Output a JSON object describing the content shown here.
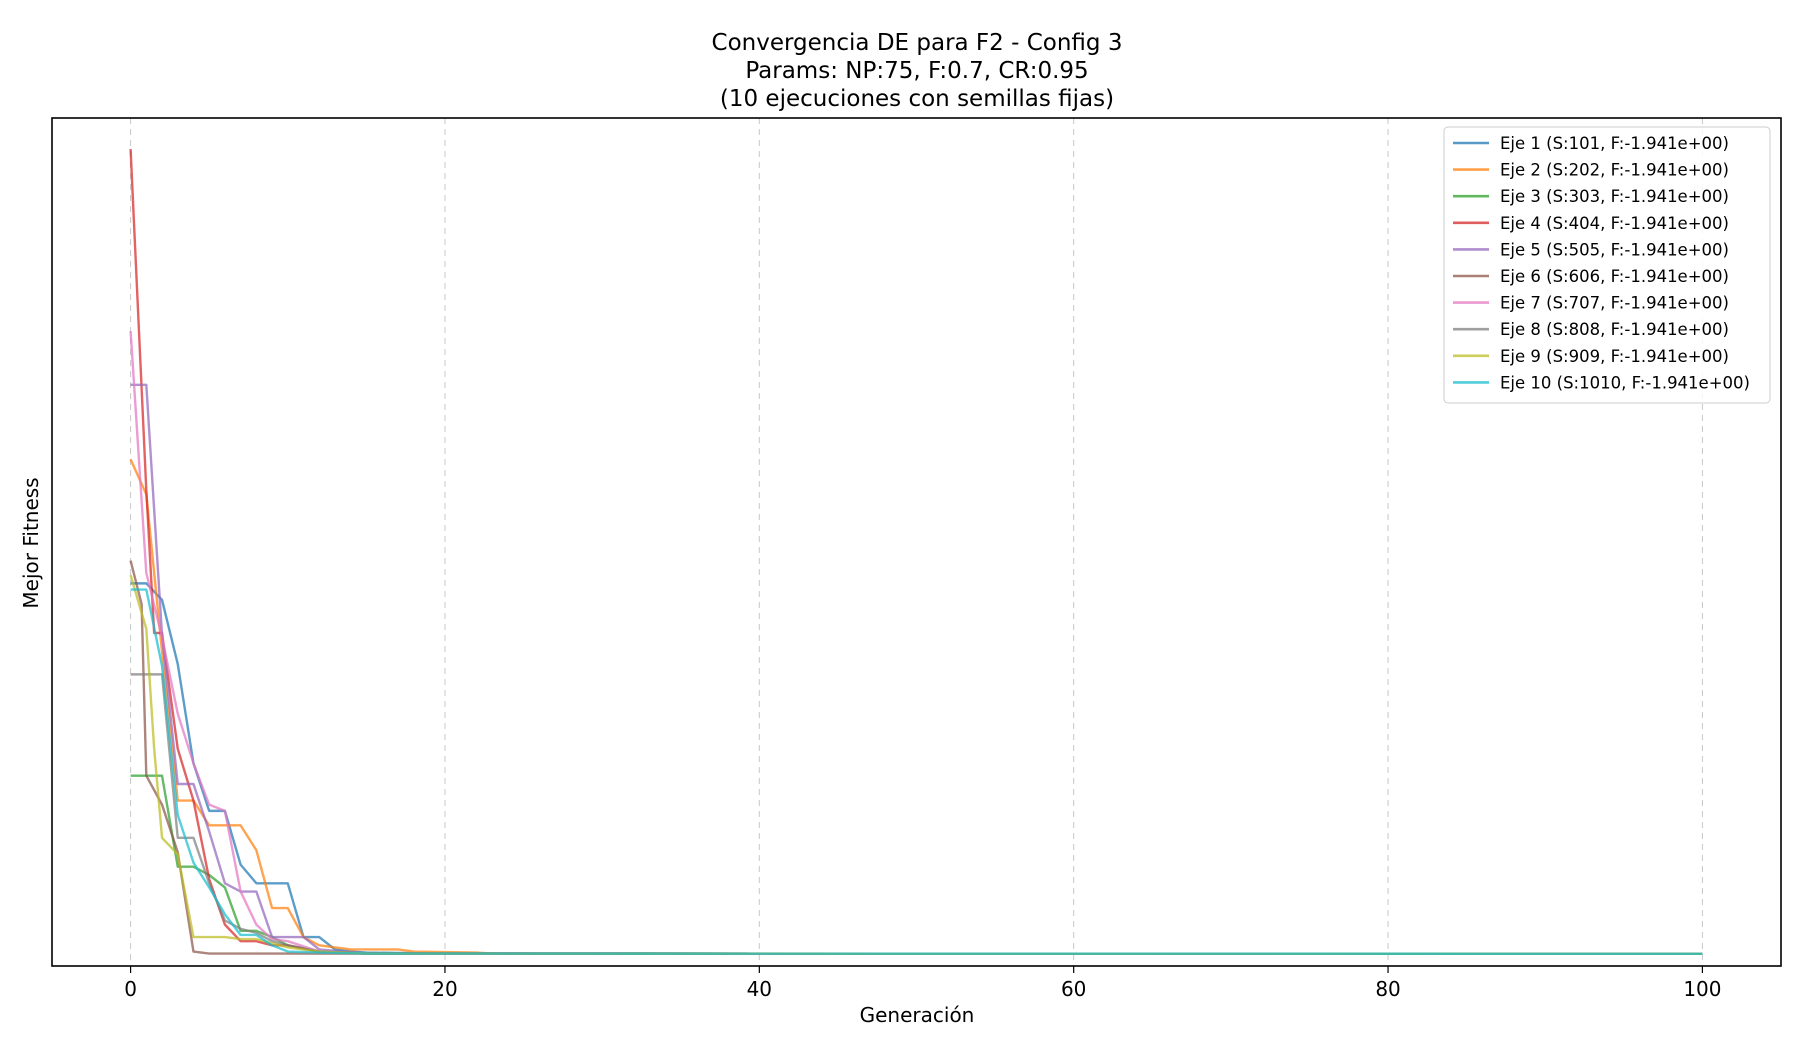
{
  "chart_data": {
    "type": "line",
    "title_lines": [
      "Convergencia DE para F2 - Config 3",
      "Params: NP:75, F:0.7, CR:0.95",
      "(10 ejecuciones con semillas fijas)"
    ],
    "xlabel": "Generación",
    "ylabel": "Mejor Fitness",
    "xlim": [
      -5,
      105
    ],
    "ylim": [
      -2.0,
      2.1
    ],
    "x_ticks": [
      0,
      20,
      40,
      60,
      80,
      100
    ],
    "y_ticks_shown": false,
    "grid": "x-dashed",
    "legend_position": "top-right",
    "final_value": -1.941,
    "series": [
      {
        "name": "Eje 1 (S:101, F:-1.941e+00)",
        "color": "#1f77b4",
        "points": [
          [
            0,
            -0.15
          ],
          [
            1,
            -0.15
          ],
          [
            2,
            -0.23
          ],
          [
            3,
            -0.54
          ],
          [
            4,
            -1.02
          ],
          [
            5,
            -1.25
          ],
          [
            6,
            -1.25
          ],
          [
            7,
            -1.51
          ],
          [
            8,
            -1.6
          ],
          [
            9,
            -1.6
          ],
          [
            10,
            -1.6
          ],
          [
            11,
            -1.86
          ],
          [
            12,
            -1.86
          ],
          [
            13,
            -1.92
          ],
          [
            14,
            -1.93
          ],
          [
            15,
            -1.935
          ],
          [
            20,
            -1.94
          ],
          [
            100,
            -1.941
          ]
        ]
      },
      {
        "name": "Eje 2 (S:202, F:-1.941e+00)",
        "color": "#ff7f0e",
        "points": [
          [
            0,
            0.45
          ],
          [
            1,
            0.28
          ],
          [
            2,
            -0.48
          ],
          [
            3,
            -1.2
          ],
          [
            4,
            -1.2
          ],
          [
            5,
            -1.32
          ],
          [
            6,
            -1.32
          ],
          [
            7,
            -1.32
          ],
          [
            8,
            -1.44
          ],
          [
            9,
            -1.72
          ],
          [
            10,
            -1.72
          ],
          [
            11,
            -1.86
          ],
          [
            12,
            -1.9
          ],
          [
            14,
            -1.92
          ],
          [
            17,
            -1.92
          ],
          [
            18,
            -1.93
          ],
          [
            22,
            -1.935
          ],
          [
            23,
            -1.94
          ],
          [
            100,
            -1.941
          ]
        ]
      },
      {
        "name": "Eje 3 (S:303, F:-1.941e+00)",
        "color": "#2ca02c",
        "points": [
          [
            0,
            -1.08
          ],
          [
            1,
            -1.08
          ],
          [
            2,
            -1.08
          ],
          [
            3,
            -1.52
          ],
          [
            4,
            -1.52
          ],
          [
            5,
            -1.56
          ],
          [
            6,
            -1.62
          ],
          [
            7,
            -1.83
          ],
          [
            8,
            -1.83
          ],
          [
            9,
            -1.86
          ],
          [
            10,
            -1.9
          ],
          [
            12,
            -1.93
          ],
          [
            15,
            -1.94
          ],
          [
            100,
            -1.941
          ]
        ]
      },
      {
        "name": "Eje 4 (S:404, F:-1.941e+00)",
        "color": "#d62728",
        "points": [
          [
            0,
            1.95
          ],
          [
            1,
            0.3
          ],
          [
            1.5,
            -0.39
          ],
          [
            2,
            -0.39
          ],
          [
            3,
            -0.95
          ],
          [
            4,
            -1.2
          ],
          [
            5,
            -1.58
          ],
          [
            6,
            -1.8
          ],
          [
            7,
            -1.88
          ],
          [
            8,
            -1.88
          ],
          [
            9,
            -1.9
          ],
          [
            10,
            -1.9
          ],
          [
            12,
            -1.93
          ],
          [
            15,
            -1.94
          ],
          [
            100,
            -1.941
          ]
        ]
      },
      {
        "name": "Eje 5 (S:505, F:-1.941e+00)",
        "color": "#9467bd",
        "points": [
          [
            0,
            0.81
          ],
          [
            1,
            0.81
          ],
          [
            2,
            -0.4
          ],
          [
            3,
            -1.12
          ],
          [
            4,
            -1.12
          ],
          [
            5,
            -1.35
          ],
          [
            6,
            -1.6
          ],
          [
            7,
            -1.64
          ],
          [
            8,
            -1.64
          ],
          [
            9,
            -1.86
          ],
          [
            10,
            -1.86
          ],
          [
            11,
            -1.86
          ],
          [
            12,
            -1.92
          ],
          [
            15,
            -1.94
          ],
          [
            100,
            -1.941
          ]
        ]
      },
      {
        "name": "Eje 6 (S:606, F:-1.941e+00)",
        "color": "#8c564b",
        "points": [
          [
            0,
            -0.04
          ],
          [
            0.7,
            -0.25
          ],
          [
            1,
            -1.08
          ],
          [
            2,
            -1.22
          ],
          [
            3,
            -1.45
          ],
          [
            4,
            -1.93
          ],
          [
            5,
            -1.94
          ],
          [
            100,
            -1.941
          ]
        ]
      },
      {
        "name": "Eje 7 (S:707, F:-1.941e+00)",
        "color": "#e377c2",
        "points": [
          [
            0,
            1.07
          ],
          [
            1,
            -0.1
          ],
          [
            2,
            -0.41
          ],
          [
            3,
            -0.78
          ],
          [
            4,
            -1.02
          ],
          [
            5,
            -1.22
          ],
          [
            6,
            -1.25
          ],
          [
            7,
            -1.64
          ],
          [
            8,
            -1.8
          ],
          [
            9,
            -1.87
          ],
          [
            10,
            -1.88
          ],
          [
            12,
            -1.93
          ],
          [
            15,
            -1.94
          ],
          [
            100,
            -1.941
          ]
        ]
      },
      {
        "name": "Eje 8 (S:808, F:-1.941e+00)",
        "color": "#7f7f7f",
        "points": [
          [
            0,
            -0.59
          ],
          [
            1,
            -0.59
          ],
          [
            2,
            -0.59
          ],
          [
            3,
            -1.38
          ],
          [
            4,
            -1.38
          ],
          [
            5,
            -1.6
          ],
          [
            6,
            -1.78
          ],
          [
            7,
            -1.82
          ],
          [
            8,
            -1.84
          ],
          [
            9,
            -1.88
          ],
          [
            10,
            -1.9
          ],
          [
            12,
            -1.93
          ],
          [
            15,
            -1.94
          ],
          [
            100,
            -1.941
          ]
        ]
      },
      {
        "name": "Eje 9 (S:909, F:-1.941e+00)",
        "color": "#bcbd22",
        "points": [
          [
            0,
            -0.11
          ],
          [
            1,
            -0.37
          ],
          [
            1.5,
            -0.95
          ],
          [
            2,
            -1.38
          ],
          [
            3,
            -1.46
          ],
          [
            4,
            -1.86
          ],
          [
            5,
            -1.86
          ],
          [
            6,
            -1.86
          ],
          [
            7,
            -1.87
          ],
          [
            8,
            -1.87
          ],
          [
            9,
            -1.89
          ],
          [
            10,
            -1.91
          ],
          [
            12,
            -1.93
          ],
          [
            15,
            -1.94
          ],
          [
            100,
            -1.941
          ]
        ]
      },
      {
        "name": "Eje 10 (S:1010, F:-1.941e+00)",
        "color": "#17becf",
        "points": [
          [
            0,
            -0.18
          ],
          [
            1,
            -0.18
          ],
          [
            2,
            -0.55
          ],
          [
            3,
            -1.27
          ],
          [
            4,
            -1.5
          ],
          [
            5,
            -1.62
          ],
          [
            6,
            -1.75
          ],
          [
            7,
            -1.85
          ],
          [
            8,
            -1.85
          ],
          [
            9,
            -1.9
          ],
          [
            10,
            -1.93
          ],
          [
            12,
            -1.935
          ],
          [
            15,
            -1.94
          ],
          [
            100,
            -1.941
          ]
        ]
      }
    ]
  }
}
